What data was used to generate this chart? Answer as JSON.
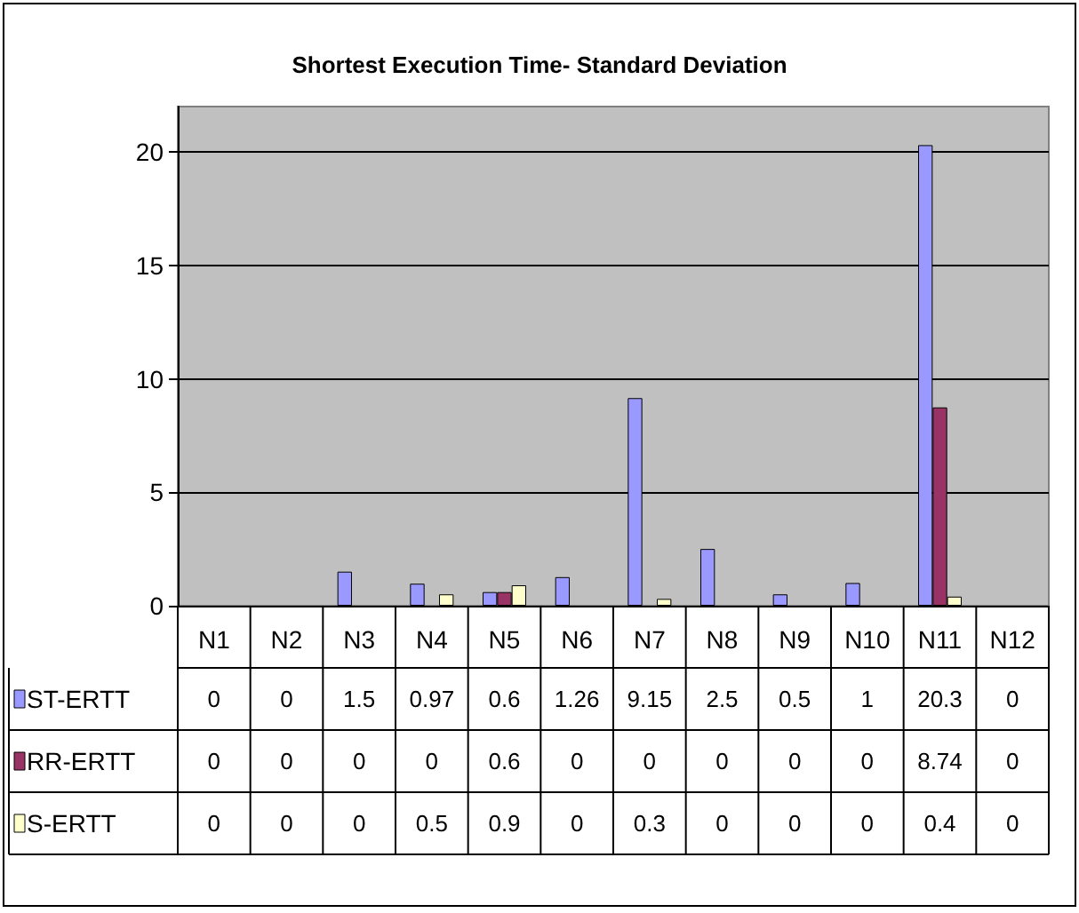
{
  "chart_data": {
    "type": "bar",
    "title": "Shortest Execution Time- Standard Deviation",
    "categories": [
      "N1",
      "N2",
      "N3",
      "N4",
      "N5",
      "N6",
      "N7",
      "N8",
      "N9",
      "N10",
      "N11",
      "N12"
    ],
    "series": [
      {
        "name": "ST-ERTT",
        "color": "#9999ff",
        "values": [
          0,
          0,
          1.5,
          0.97,
          0.6,
          1.26,
          9.15,
          2.5,
          0.5,
          1,
          20.3,
          0
        ]
      },
      {
        "name": "RR-ERTT",
        "color": "#993366",
        "values": [
          0,
          0,
          0,
          0,
          0.6,
          0,
          0,
          0,
          0,
          0,
          8.74,
          0
        ]
      },
      {
        "name": "S-ERTT",
        "color": "#ffffcc",
        "values": [
          0,
          0,
          0,
          0.5,
          0.9,
          0,
          0.3,
          0,
          0,
          0,
          0.4,
          0
        ]
      }
    ],
    "ylim": [
      0,
      22
    ],
    "yticks": [
      0,
      5,
      10,
      15,
      20
    ],
    "grid": "y",
    "legend": "bottom",
    "data_labels": true
  }
}
